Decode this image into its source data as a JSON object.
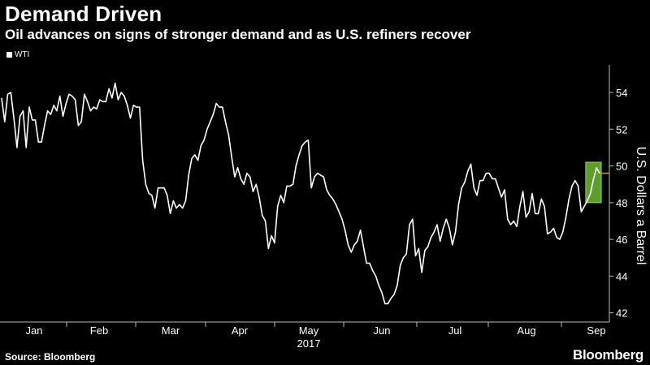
{
  "chart_data": {
    "type": "line",
    "title": "Demand Driven",
    "subtitle": "Oil advances on signs of stronger demand and as U.S. refiners recover",
    "ylabel": "U.S. Dollars a Barrel",
    "ylim": [
      41.5,
      55.5
    ],
    "yticks": [
      "54",
      "52",
      "50",
      "48",
      "46",
      "44",
      "42"
    ],
    "xlabels": [
      "Jan",
      "Feb",
      "Mar",
      "Apr",
      "May",
      "Jun",
      "Jul",
      "Aug",
      "Sep"
    ],
    "year_label": "2017",
    "legend_position": "top-left",
    "grid": false,
    "series": [
      {
        "name": "WTI",
        "color": "#ffffff",
        "values": [
          53.7,
          52.4,
          53.9,
          54.0,
          52.6,
          51.0,
          52.7,
          53.0,
          51.0,
          53.2,
          52.5,
          52.5,
          51.3,
          51.3,
          52.2,
          53.0,
          52.8,
          53.3,
          53.0,
          53.8,
          52.7,
          53.4,
          53.9,
          53.8,
          53.6,
          52.2,
          52.4,
          53.9,
          53.5,
          53.0,
          53.2,
          53.1,
          53.6,
          53.5,
          53.5,
          54.2,
          53.7,
          54.5,
          53.6,
          54.0,
          53.8,
          53.3,
          52.6,
          53.3,
          53.2,
          53.2,
          50.3,
          49.0,
          48.5,
          48.4,
          47.7,
          48.8,
          48.8,
          48.8,
          48.4,
          47.4,
          48.1,
          47.7,
          47.9,
          47.7,
          48.1,
          49.5,
          50.4,
          50.6,
          50.3,
          51.1,
          51.4,
          52.0,
          52.4,
          52.8,
          53.4,
          53.2,
          53.2,
          52.4,
          51.7,
          50.5,
          49.4,
          49.9,
          49.3,
          49.0,
          49.6,
          49.4,
          48.6,
          49.0,
          48.3,
          47.3,
          47.0,
          45.5,
          46.2,
          45.8,
          47.8,
          48.4,
          48.0,
          48.9,
          48.9,
          49.0,
          50.0,
          50.6,
          51.1,
          51.3,
          51.4,
          48.8,
          49.4,
          49.6,
          49.5,
          49.4,
          48.7,
          48.4,
          48.2,
          47.9,
          47.5,
          47.1,
          46.5,
          45.7,
          45.3,
          45.7,
          45.9,
          46.5,
          45.6,
          44.7,
          44.7,
          44.3,
          44.0,
          43.5,
          43.1,
          42.5,
          42.5,
          42.8,
          43.0,
          43.5,
          44.6,
          45.0,
          45.2,
          46.8,
          47.1,
          45.1,
          45.5,
          44.2,
          45.4,
          45.6,
          46.1,
          46.4,
          46.8,
          45.9,
          46.6,
          47.1,
          46.6,
          45.7,
          46.4,
          47.9,
          48.8,
          49.1,
          49.7,
          50.1,
          48.8,
          48.4,
          49.2,
          49.2,
          49.6,
          49.6,
          49.3,
          49.3,
          48.8,
          48.3,
          48.7,
          47.1,
          46.8,
          47.0,
          46.7,
          47.8,
          48.6,
          47.2,
          47.5,
          48.5,
          47.4,
          47.4,
          48.2,
          47.8,
          46.3,
          46.4,
          46.6,
          46.1,
          46.0,
          46.4,
          47.2,
          48.2,
          48.9,
          49.2,
          48.9,
          47.5,
          47.8,
          48.1,
          48.5,
          49.3,
          49.9,
          49.6
        ]
      }
    ],
    "highlight": {
      "fill": "#7bd13a",
      "stroke": "#9bd86a",
      "y_range": [
        48.0,
        50.2
      ]
    },
    "last_marker_color": "#ff8c1a"
  },
  "footer": {
    "source": "Source: Bloomberg",
    "brand": "Bloomberg"
  }
}
